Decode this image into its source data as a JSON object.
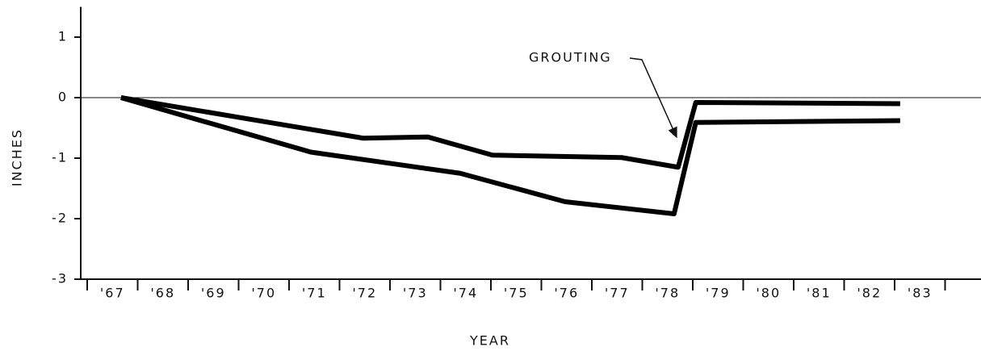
{
  "chart_data": {
    "type": "line",
    "y_label": "INCHES",
    "x_label": "YEAR",
    "annotation": "GROUTING",
    "xlim": [
      1967,
      1984
    ],
    "ylim": [
      -3,
      1.5
    ],
    "xticks": [
      {
        "value": 1967,
        "label": "'67"
      },
      {
        "value": 1968,
        "label": "'68"
      },
      {
        "value": 1969,
        "label": "'69"
      },
      {
        "value": 1970,
        "label": "'70"
      },
      {
        "value": 1971,
        "label": "'71"
      },
      {
        "value": 1972,
        "label": "'72"
      },
      {
        "value": 1973,
        "label": "'73"
      },
      {
        "value": 1974,
        "label": "'74"
      },
      {
        "value": 1975,
        "label": "'75"
      },
      {
        "value": 1976,
        "label": "'76"
      },
      {
        "value": 1977,
        "label": "'77"
      },
      {
        "value": 1978,
        "label": "'78"
      },
      {
        "value": 1979,
        "label": "'79"
      },
      {
        "value": 1980,
        "label": "'80"
      },
      {
        "value": 1981,
        "label": "'81"
      },
      {
        "value": 1982,
        "label": "'82"
      },
      {
        "value": 1983,
        "label": "'83"
      }
    ],
    "yticks": [
      1,
      0,
      -1,
      -2,
      -3
    ],
    "series": [
      {
        "color": "#000000",
        "x": [
          1967.67,
          1972.47,
          1973.75,
          1975.03,
          1977.59,
          1978.71,
          1979.06,
          1983.11
        ],
        "values": [
          0,
          -0.67,
          -0.65,
          -0.95,
          -0.99,
          -1.15,
          -0.08,
          -0.1
        ]
      },
      {
        "color": "#000000",
        "x": [
          1967.67,
          1971.43,
          1974.39,
          1976.47,
          1978.63,
          1979.06,
          1983.11
        ],
        "values": [
          0,
          -0.9,
          -1.25,
          -1.72,
          -1.92,
          -0.41,
          -0.38
        ]
      }
    ]
  }
}
